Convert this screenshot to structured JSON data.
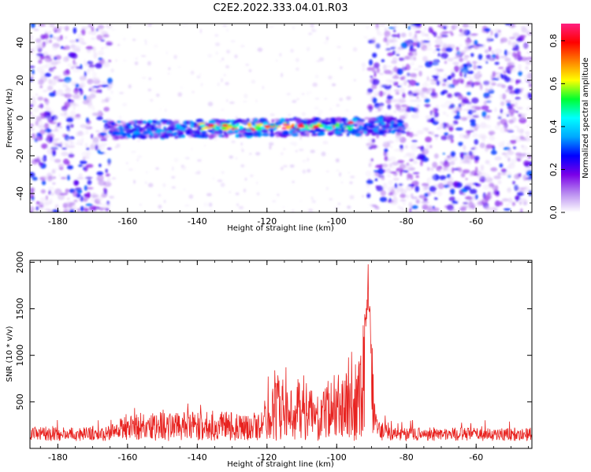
{
  "title": "C2E2.2022.333.04.01.R03",
  "chart_data": [
    {
      "type": "heatmap",
      "xlabel": "Height of straight line (km)",
      "ylabel": "Frequency (Hz)",
      "xlim": [
        -188,
        -44
      ],
      "ylim": [
        -50,
        50
      ],
      "xticks": [
        "-180",
        "-160",
        "-140",
        "-120",
        "-100",
        "-80",
        "-60"
      ],
      "yticks": [
        "-40",
        "-20",
        "0",
        "20",
        "40"
      ],
      "colorbar": {
        "label": "Normalized spectral amplitude",
        "range": [
          0,
          0.88
        ],
        "ticks": [
          "0.0",
          "0.2",
          "0.4",
          "0.6",
          "0.8"
        ],
        "colors": [
          "#ffffff",
          "#b98cf0",
          "#7a00e8",
          "#0000ff",
          "#00a8ff",
          "#00ffff",
          "#00ff30",
          "#ffff00",
          "#ff8000",
          "#ff0000",
          "#ff2080"
        ]
      },
      "features": {
        "noise_regions_km": [
          [
            -188,
            -165
          ],
          [
            -91,
            -44
          ]
        ],
        "signal_band_km": [
          -165,
          -81
        ],
        "signal_band_freq_hz": [
          -11,
          -2
        ],
        "peak_amplitude": 0.88
      }
    },
    {
      "type": "line",
      "xlabel": "Height of straight line (km)",
      "ylabel": "SNR (10 * v/v)",
      "xlim": [
        -188,
        -44
      ],
      "ylim": [
        0,
        2020
      ],
      "xticks": [
        "-180",
        "-160",
        "-140",
        "-120",
        "-100",
        "-80",
        "-60"
      ],
      "yticks": [
        "500",
        "1000",
        "1500",
        "2000"
      ],
      "color": "#e8221f",
      "profile": [
        {
          "x": -188,
          "y": 180
        },
        {
          "x": -166,
          "y": 180
        },
        {
          "x": -161,
          "y": 300
        },
        {
          "x": -150,
          "y": 320
        },
        {
          "x": -140,
          "y": 300
        },
        {
          "x": -132,
          "y": 340
        },
        {
          "x": -126,
          "y": 280
        },
        {
          "x": -121,
          "y": 310
        },
        {
          "x": -118,
          "y": 700
        },
        {
          "x": -113,
          "y": 500
        },
        {
          "x": -110,
          "y": 650
        },
        {
          "x": -105,
          "y": 420
        },
        {
          "x": -100,
          "y": 700
        },
        {
          "x": -96,
          "y": 650
        },
        {
          "x": -93,
          "y": 900
        },
        {
          "x": -91,
          "y": 2020
        },
        {
          "x": -89,
          "y": 300
        },
        {
          "x": -85,
          "y": 180
        },
        {
          "x": -44,
          "y": 175
        }
      ]
    }
  ]
}
